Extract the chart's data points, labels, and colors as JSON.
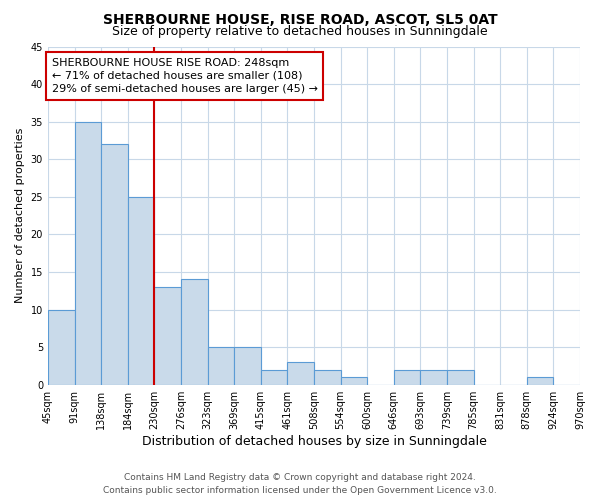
{
  "title": "SHERBOURNE HOUSE, RISE ROAD, ASCOT, SL5 0AT",
  "subtitle": "Size of property relative to detached houses in Sunningdale",
  "xlabel": "Distribution of detached houses by size in Sunningdale",
  "ylabel": "Number of detached properties",
  "bin_labels": [
    "45sqm",
    "91sqm",
    "138sqm",
    "184sqm",
    "230sqm",
    "276sqm",
    "323sqm",
    "369sqm",
    "415sqm",
    "461sqm",
    "508sqm",
    "554sqm",
    "600sqm",
    "646sqm",
    "693sqm",
    "739sqm",
    "785sqm",
    "831sqm",
    "878sqm",
    "924sqm",
    "970sqm"
  ],
  "counts": [
    10,
    35,
    32,
    25,
    13,
    14,
    5,
    5,
    2,
    3,
    2,
    1,
    0,
    2,
    2,
    2,
    0,
    0,
    1,
    0
  ],
  "bar_color": "#c9daea",
  "bar_edge_color": "#5b9bd5",
  "vline_x_index": 4,
  "vline_color": "#cc0000",
  "annotation_box_edge_color": "#cc0000",
  "annotation_text_line1": "SHERBOURNE HOUSE RISE ROAD: 248sqm",
  "annotation_text_line2": "← 71% of detached houses are smaller (108)",
  "annotation_text_line3": "29% of semi-detached houses are larger (45) →",
  "ylim": [
    0,
    45
  ],
  "yticks": [
    0,
    5,
    10,
    15,
    20,
    25,
    30,
    35,
    40,
    45
  ],
  "footer_line1": "Contains HM Land Registry data © Crown copyright and database right 2024.",
  "footer_line2": "Contains public sector information licensed under the Open Government Licence v3.0.",
  "title_fontsize": 10,
  "subtitle_fontsize": 9,
  "xlabel_fontsize": 9,
  "ylabel_fontsize": 8,
  "tick_fontsize": 7,
  "annotation_fontsize": 8,
  "footer_fontsize": 6.5,
  "background_color": "#ffffff",
  "grid_color": "#c8d8e8"
}
